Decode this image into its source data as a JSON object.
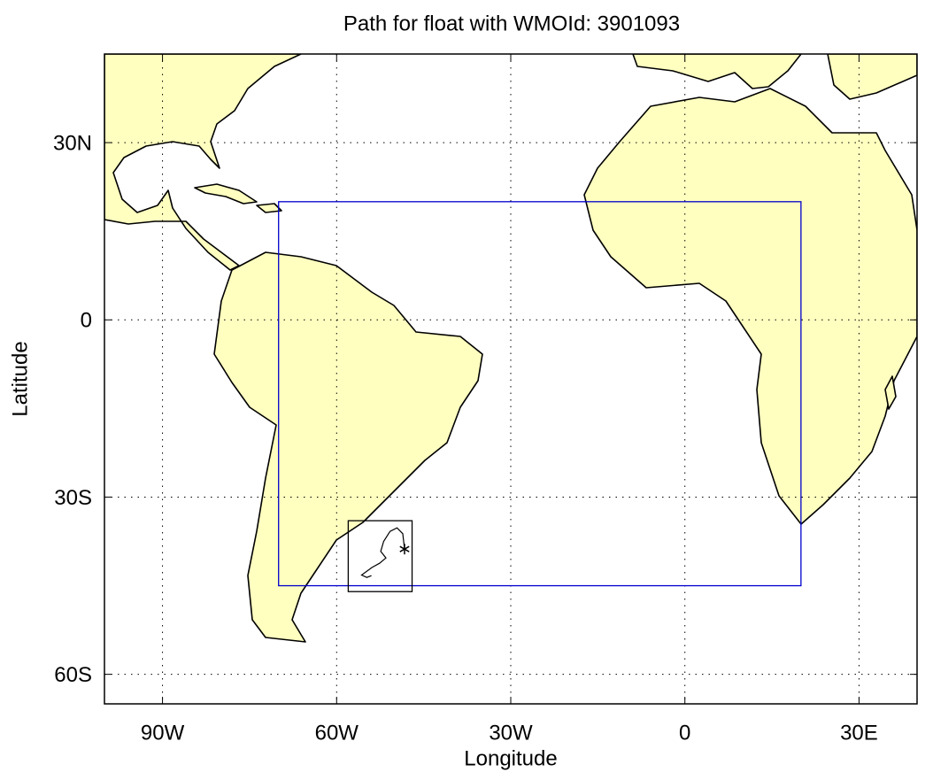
{
  "chart_data": {
    "type": "map",
    "title": "Path for float with WMOId: 3901093",
    "x_label": "Longitude",
    "y_label": "Latitude",
    "xlim": [
      -100,
      40
    ],
    "ylim": [
      -65,
      45
    ],
    "xticks": [
      {
        "value": -90,
        "label": "90W"
      },
      {
        "value": -60,
        "label": "60W"
      },
      {
        "value": -30,
        "label": "30W"
      },
      0,
      {
        "value": 30,
        "label": "30E"
      }
    ],
    "yticks": [
      {
        "value": -60,
        "label": "60S"
      },
      {
        "value": -30,
        "label": "30S"
      },
      0,
      {
        "value": 30,
        "label": "30N"
      }
    ],
    "grid": true,
    "regions": [
      {
        "color": "#0000cc",
        "lon": [
          -70,
          20
        ],
        "lat": [
          -45,
          20
        ]
      },
      {
        "color": "#000000",
        "lon": [
          -58,
          -47
        ],
        "lat": [
          -46,
          -34
        ]
      }
    ],
    "track": {
      "color": "#000000",
      "lon": [
        -48.3,
        -48.6,
        -49.6,
        -50.8,
        -51.9,
        -52.4,
        -51.5,
        -52.6,
        -53.9,
        -55.7,
        -54.8,
        -54.0
      ],
      "lat": [
        -38.8,
        -36.2,
        -35.2,
        -35.8,
        -37.5,
        -39.2,
        -40.3,
        -41.2,
        -41.9,
        -43.2,
        -43.6,
        -43.3
      ]
    },
    "marker": {
      "lon": -48.3,
      "lat": -38.8
    }
  }
}
